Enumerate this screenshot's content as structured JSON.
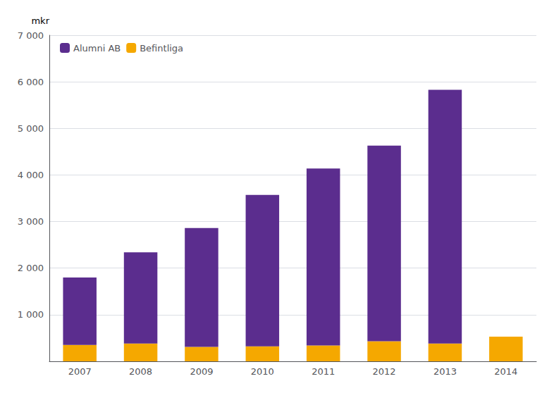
{
  "chart_data": {
    "type": "bar",
    "stacked": true,
    "ylabel": "mkr",
    "categories": [
      "2007",
      "2008",
      "2009",
      "2010",
      "2011",
      "2012",
      "2013",
      "2014"
    ],
    "series": [
      {
        "name": "Befintliga",
        "color": "#f5a800",
        "values": [
          350,
          380,
          310,
          320,
          340,
          430,
          380,
          530
        ]
      },
      {
        "name": "Alumni AB",
        "color": "#5b2d8e",
        "values": [
          1450,
          1960,
          2550,
          3250,
          3800,
          4200,
          5450,
          0
        ]
      }
    ],
    "ylim": [
      0,
      7000
    ],
    "yticks": [
      {
        "value": 0,
        "label": null
      },
      {
        "value": 1000,
        "label": "1 000"
      },
      {
        "value": 2000,
        "label": "2 000"
      },
      {
        "value": 3000,
        "label": "3 000"
      },
      {
        "value": 4000,
        "label": "4 000"
      },
      {
        "value": 5000,
        "label": "5 000"
      },
      {
        "value": 6000,
        "label": "6 000"
      },
      {
        "value": 7000,
        "label": "7 000"
      }
    ],
    "grid": true,
    "legend": "upper left"
  }
}
